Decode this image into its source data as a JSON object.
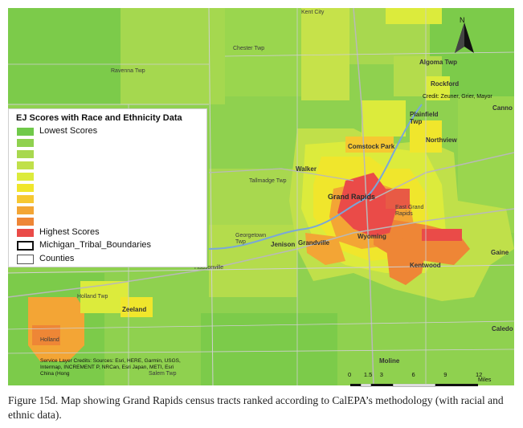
{
  "legend": {
    "title": "EJ Scores with Race and Ethnicity Data",
    "lowest_label": "Lowest Scores",
    "highest_label": "Highest Scores",
    "tribal_label": "Michigan_Tribal_Boundaries",
    "counties_label": "Counties",
    "scale_colors": [
      "#70c94a",
      "#8fd14f",
      "#a8d84f",
      "#c0e04a",
      "#dceb3c",
      "#f0e62c",
      "#f6c832",
      "#f3a535",
      "#ee8636",
      "#ea4b48"
    ]
  },
  "places": {
    "kent_city": "Kent City",
    "ravenna_twp": "Ravenna Twp",
    "chester_twp": "Chester Twp",
    "algoma_twp": "Algoma Twp",
    "rockford": "Rockford",
    "plainfield_twp": "Plainfield Twp",
    "comstock_park": "Comstock Park",
    "northview": "Northview",
    "walker": "Walker",
    "tallmadge_twp": "Tallmadge Twp",
    "grand_rapids": "Grand Rapids",
    "east_grand_rapids": "East Grand Rapids",
    "georgetown_twp": "Georgetown Twp",
    "jenison": "Jenison",
    "grandville": "Grandville",
    "wyoming": "Wyoming",
    "kentwood": "Kentwood",
    "hudsonville": "Hudsonville",
    "holland_twp": "Holland Twp",
    "zeeland": "Zeeland",
    "holland": "Holland",
    "salem_twp": "Salem Twp",
    "moline": "Moline",
    "caledonia": "Caledo",
    "cannon": "Canno",
    "gaines": "Gaine"
  },
  "credit": "Credit: Zeuner, Grier, Mayor",
  "service_credits": "Service Layer Credits: Sources: Esri, HERE, Garmin, USGS, Intermap, INCREMENT P, NRCan, Esri Japan, METI, Esri China (Hong",
  "north_label": "N",
  "scale": {
    "ticks": [
      "0",
      "1.5",
      "3",
      "6",
      "9",
      "12"
    ],
    "unit": "Miles"
  },
  "caption": "Figure 15d. Map showing Grand Rapids census tracts ranked according to CalEPA’s methodology (with racial and ethnic data)."
}
